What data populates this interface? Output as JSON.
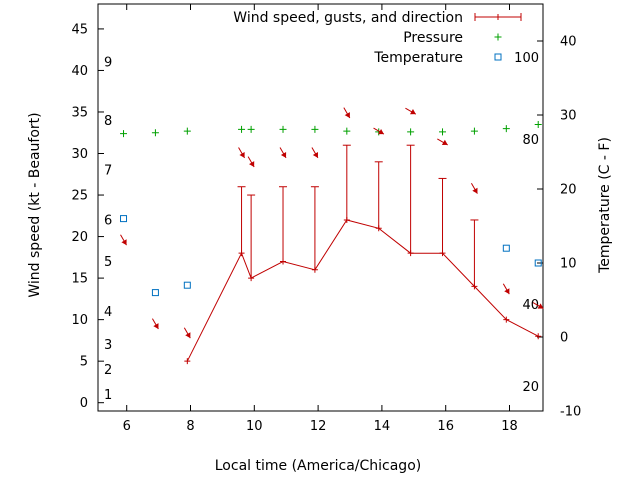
{
  "chart_data": {
    "type": "line",
    "xlabel": "Local time (America/Chicago)",
    "ylabel": "Wind speed (kt - Beaufort)",
    "y2label": "Temperature (C - F)",
    "xlim": [
      5.1,
      19.05
    ],
    "ylim": [
      -1,
      48
    ],
    "y2lim": [
      -10,
      45
    ],
    "x_ticks": [
      6,
      8,
      10,
      12,
      14,
      16,
      18
    ],
    "y_ticks": [
      0,
      5,
      10,
      15,
      20,
      25,
      30,
      35,
      40,
      45
    ],
    "y2_ticks": [
      -10,
      0,
      10,
      20,
      30,
      40
    ],
    "beaufort_labels": [
      {
        "label": "1",
        "y": 1
      },
      {
        "label": "2",
        "y": 4
      },
      {
        "label": "3",
        "y": 7
      },
      {
        "label": "4",
        "y": 11
      },
      {
        "label": "5",
        "y": 17
      },
      {
        "label": "6",
        "y": 22
      },
      {
        "label": "7",
        "y": 28
      },
      {
        "label": "8",
        "y": 34
      },
      {
        "label": "9",
        "y": 41
      }
    ],
    "fahrenheit_labels": [
      {
        "label": "20",
        "temp_c": -6.7
      },
      {
        "label": "40",
        "temp_c": 4.4
      },
      {
        "label": "80",
        "temp_c": 26.7
      },
      {
        "label": "100",
        "temp_c": 37.8
      }
    ],
    "legend": [
      {
        "name": "Wind speed, gusts, and direction",
        "color": "#c00000"
      },
      {
        "name": "Pressure",
        "color": "#00a000"
      },
      {
        "name": "Temperature",
        "color": "#0070c0"
      }
    ],
    "series": [
      {
        "name": "Wind speed, gusts, and direction",
        "color": "#c00000",
        "points": [
          {
            "x": 7.9,
            "y": 5,
            "gust": 5
          },
          {
            "x": 9.6,
            "y": 18,
            "gust": 26
          },
          {
            "x": 9.9,
            "y": 15,
            "gust": 25
          },
          {
            "x": 10.9,
            "y": 17,
            "gust": 26
          },
          {
            "x": 11.9,
            "y": 16,
            "gust": 26
          },
          {
            "x": 12.9,
            "y": 22,
            "gust": 31
          },
          {
            "x": 13.9,
            "y": 21,
            "gust": 29
          },
          {
            "x": 14.9,
            "y": 18,
            "gust": 31
          },
          {
            "x": 15.9,
            "y": 18,
            "gust": 27
          },
          {
            "x": 16.9,
            "y": 14,
            "gust": 22
          },
          {
            "x": 17.9,
            "y": 10,
            "gust": 10
          },
          {
            "x": 18.9,
            "y": 8,
            "gust": 8
          }
        ]
      },
      {
        "name": "Pressure",
        "color": "#00a000",
        "points": [
          {
            "x": 5.9,
            "y": 32.4
          },
          {
            "x": 6.9,
            "y": 32.5
          },
          {
            "x": 7.9,
            "y": 32.7
          },
          {
            "x": 9.6,
            "y": 32.9
          },
          {
            "x": 9.9,
            "y": 32.9
          },
          {
            "x": 10.9,
            "y": 32.9
          },
          {
            "x": 11.9,
            "y": 32.9
          },
          {
            "x": 12.9,
            "y": 32.7
          },
          {
            "x": 13.9,
            "y": 32.6
          },
          {
            "x": 14.9,
            "y": 32.6
          },
          {
            "x": 15.9,
            "y": 32.6
          },
          {
            "x": 16.9,
            "y": 32.7
          },
          {
            "x": 17.9,
            "y": 33.0
          },
          {
            "x": 18.9,
            "y": 33.5
          }
        ]
      },
      {
        "name": "Temperature",
        "color": "#0070c0",
        "axis": "right",
        "points": [
          {
            "x": 5.9,
            "y": 16
          },
          {
            "x": 6.9,
            "y": 6
          },
          {
            "x": 7.9,
            "y": 7
          },
          {
            "x": 17.9,
            "y": 12
          },
          {
            "x": 18.9,
            "y": 10
          }
        ]
      }
    ],
    "direction_arrows": [
      {
        "x": 5.9,
        "y": 19.6,
        "from_deg": 330
      },
      {
        "x": 6.9,
        "y": 9.5,
        "from_deg": 330
      },
      {
        "x": 7.9,
        "y": 8.4,
        "from_deg": 330
      },
      {
        "x": 9.6,
        "y": 30.1,
        "from_deg": 330
      },
      {
        "x": 9.9,
        "y": 29.0,
        "from_deg": 330
      },
      {
        "x": 10.9,
        "y": 30.1,
        "from_deg": 330
      },
      {
        "x": 11.9,
        "y": 30.1,
        "from_deg": 330
      },
      {
        "x": 12.9,
        "y": 34.9,
        "from_deg": 330
      },
      {
        "x": 13.9,
        "y": 32.7,
        "from_deg": 300
      },
      {
        "x": 14.9,
        "y": 35.1,
        "from_deg": 300
      },
      {
        "x": 15.9,
        "y": 31.4,
        "from_deg": 300
      },
      {
        "x": 16.9,
        "y": 25.8,
        "from_deg": 330
      },
      {
        "x": 17.9,
        "y": 13.7,
        "from_deg": 330
      },
      {
        "x": 18.9,
        "y": 11.7,
        "from_deg": 300
      }
    ]
  }
}
